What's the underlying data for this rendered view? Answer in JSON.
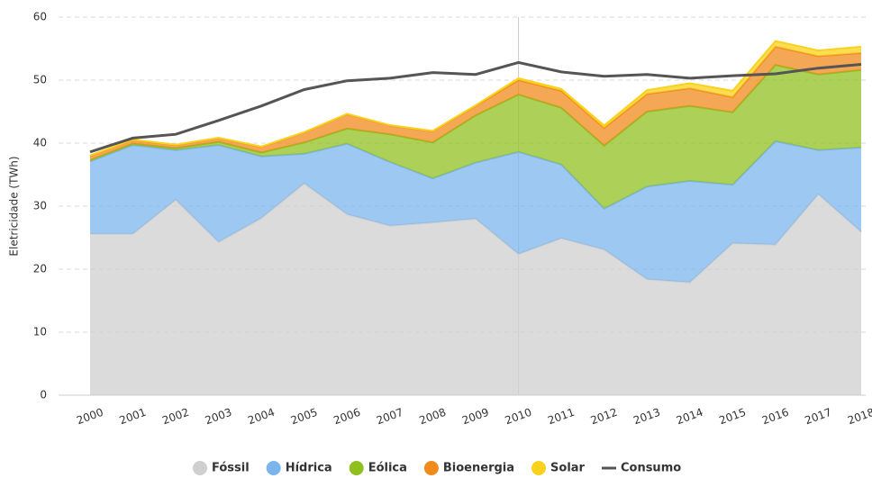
{
  "chart_data": {
    "type": "area",
    "stacked": true,
    "y_axis_label": "Eletricidade (TWh)",
    "categories": [
      "2000",
      "2001",
      "2002",
      "2003",
      "2004",
      "2005",
      "2006",
      "2007",
      "2008",
      "2009",
      "2010",
      "2011",
      "2012",
      "2013",
      "2014",
      "2015",
      "2016",
      "2017",
      "2018"
    ],
    "series": [
      {
        "name": "Fóssil",
        "color": "#cfcfcf",
        "values": [
          25.6,
          25.6,
          31,
          24.3,
          28.1,
          33.6,
          28.7,
          26.9,
          27.4,
          28,
          22.4,
          24.9,
          23.1,
          18.4,
          17.9,
          24.1,
          23.9,
          31.9,
          25.9
        ]
      },
      {
        "name": "Hídrica",
        "color": "#7cb5ec",
        "values": [
          11.5,
          14.1,
          7.9,
          15.4,
          9.8,
          4.7,
          11.2,
          10.1,
          7,
          8.9,
          16.2,
          11.7,
          6.5,
          14.7,
          16.1,
          9.3,
          16.4,
          7,
          13.4
        ]
      },
      {
        "name": "Eólica",
        "color": "#90c020",
        "values": [
          0.2,
          0.2,
          0.3,
          0.5,
          0.6,
          1.8,
          2.4,
          4.4,
          5.7,
          7.5,
          9.1,
          9,
          10,
          11.9,
          11.9,
          11.5,
          12.1,
          12,
          12.3
        ]
      },
      {
        "name": "Bioenergia",
        "color": "#f08a1c",
        "values": [
          0.7,
          0.6,
          0.5,
          0.6,
          0.9,
          1.6,
          2.3,
          1.4,
          1.8,
          1.5,
          2.3,
          2.7,
          2.8,
          2.8,
          2.8,
          2.4,
          2.9,
          2.9,
          2.7
        ]
      },
      {
        "name": "Solar",
        "color": "#f9d21c",
        "values": [
          0.05,
          0.05,
          0.05,
          0.05,
          0.05,
          0.05,
          0.05,
          0.05,
          0.05,
          0.1,
          0.3,
          0.3,
          0.4,
          0.6,
          0.8,
          1,
          0.9,
          0.9,
          1
        ]
      },
      {
        "name": "Consumo",
        "type": "line",
        "color": "#555555",
        "values": [
          38.6,
          40.8,
          41.4,
          43.6,
          45.9,
          48.5,
          49.9,
          50.3,
          51.2,
          50.9,
          52.8,
          51.3,
          50.6,
          50.9,
          50.3,
          50.7,
          51,
          51.9,
          52.5
        ]
      }
    ],
    "ylim": [
      0,
      60
    ],
    "yticks": [
      0,
      10,
      20,
      30,
      40,
      50,
      60
    ],
    "grid": true
  }
}
